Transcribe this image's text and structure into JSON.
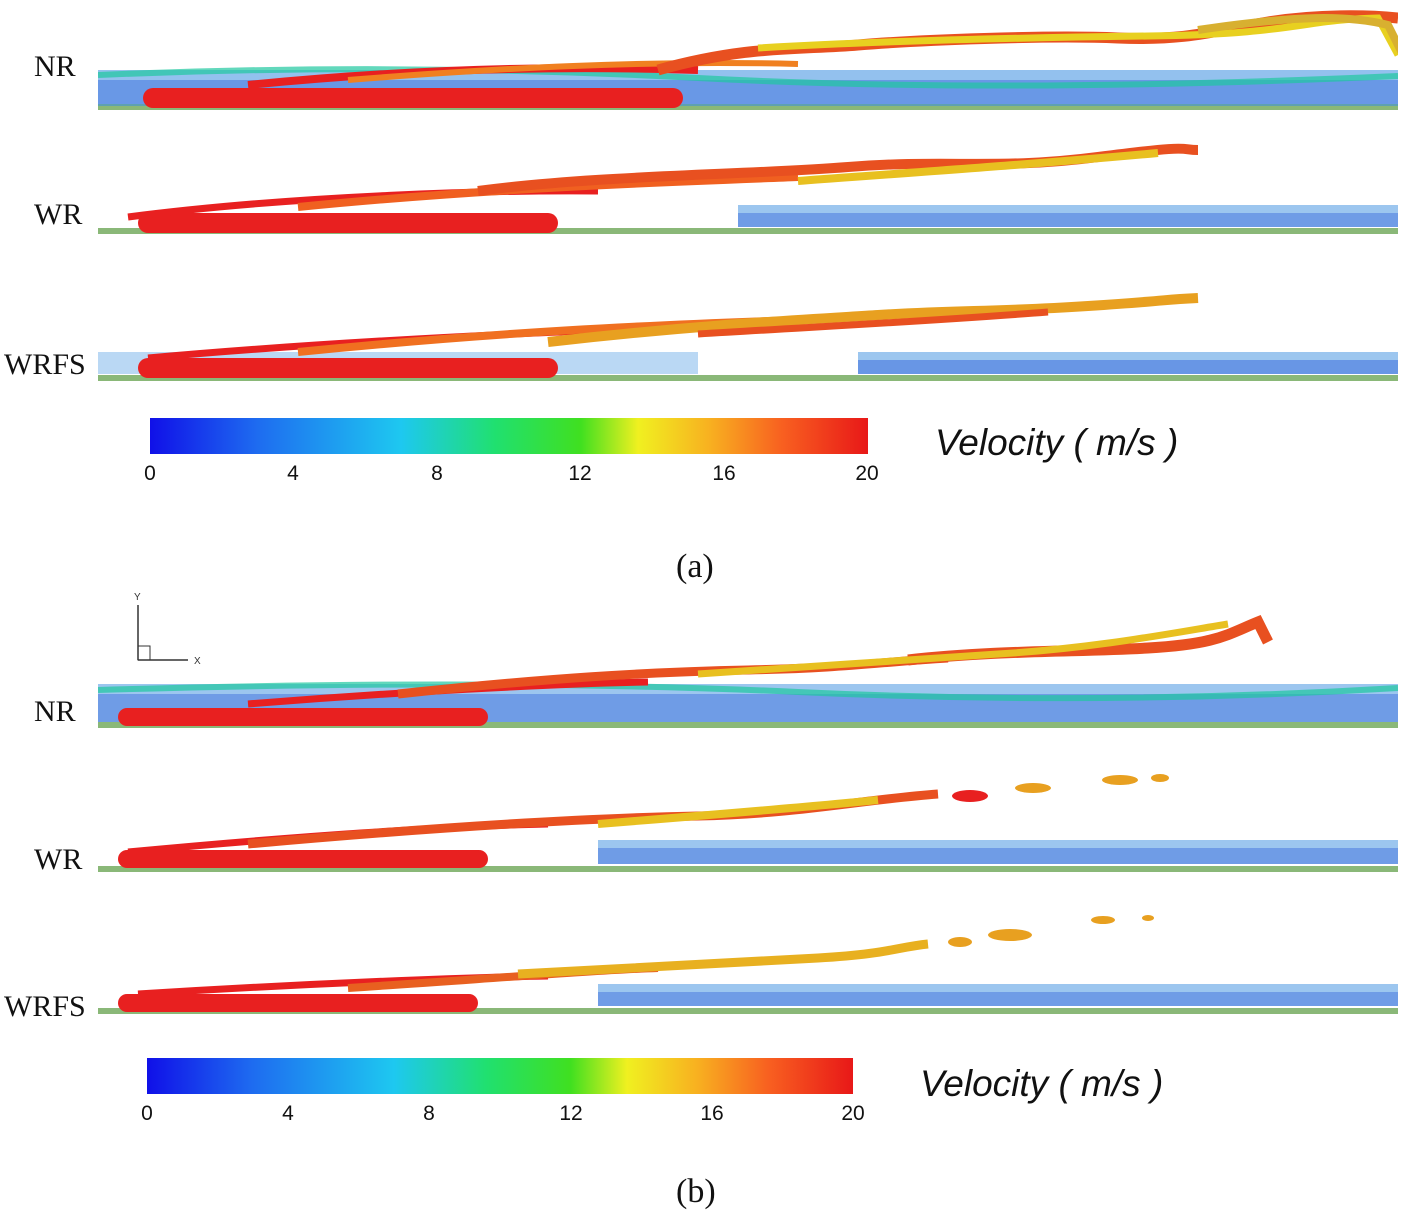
{
  "panels": [
    {
      "caption": "(a)",
      "rows": [
        {
          "label": "NR"
        },
        {
          "label": "WR"
        },
        {
          "label": "WRFS"
        }
      ],
      "colorbar": {
        "title": "Velocity ( m/s )",
        "ticks": [
          "0",
          "4",
          "8",
          "12",
          "16",
          "20"
        ]
      }
    },
    {
      "caption": "(b)",
      "axis": {
        "y": "Y",
        "x": "X"
      },
      "rows": [
        {
          "label": "NR"
        },
        {
          "label": "WR"
        },
        {
          "label": "WRFS"
        }
      ],
      "colorbar": {
        "title": "Velocity ( m/s )",
        "ticks": [
          "0",
          "4",
          "8",
          "12",
          "16",
          "20"
        ]
      }
    }
  ],
  "colors": {
    "low": "#1010e8",
    "mid": "#20e070",
    "high": "#e81818",
    "wall": "#8ab878"
  }
}
